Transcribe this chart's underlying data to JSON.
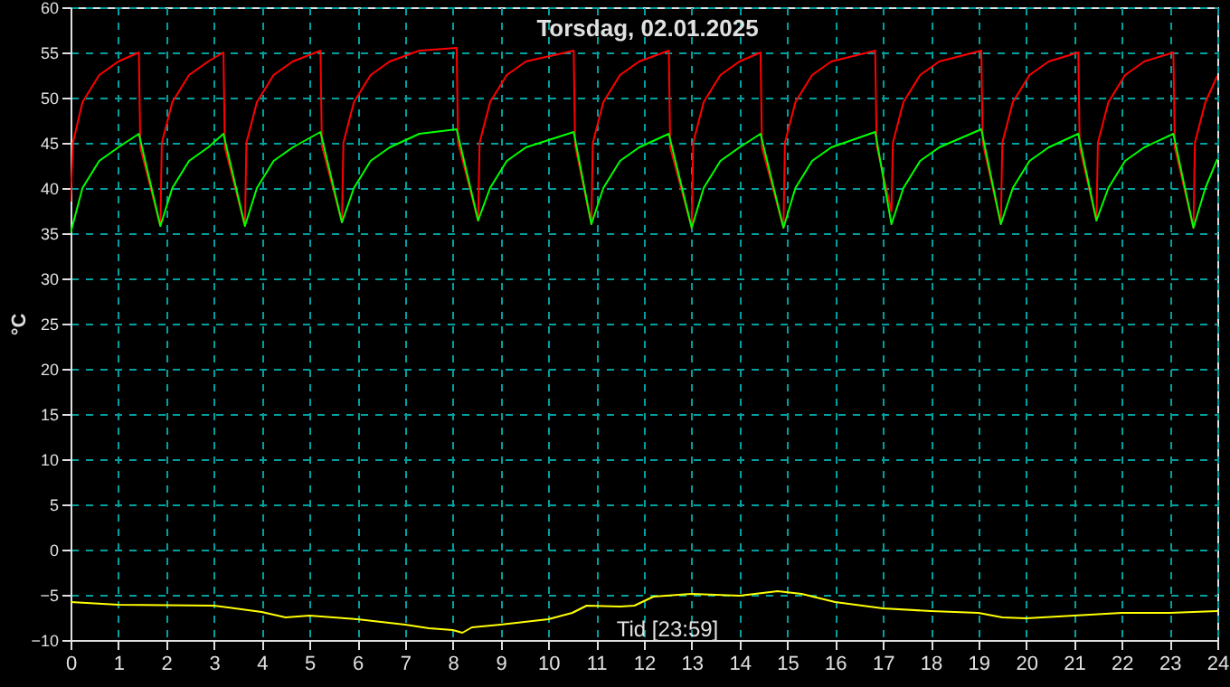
{
  "chart_data": {
    "type": "line",
    "title": "Torsdag, 02.01.2025",
    "xlabel": "Tid [23:59]",
    "ylabel": "°C",
    "xlim": [
      0,
      24
    ],
    "xticks": [
      0,
      1,
      2,
      3,
      4,
      5,
      6,
      7,
      8,
      9,
      10,
      11,
      12,
      13,
      14,
      15,
      16,
      17,
      18,
      19,
      20,
      21,
      22,
      23,
      24
    ],
    "ylim": [
      -10,
      60
    ],
    "yticks": [
      -10,
      -5,
      0,
      5,
      10,
      15,
      20,
      25,
      30,
      35,
      40,
      45,
      50,
      55,
      60
    ],
    "grid": true,
    "line_style": "solid",
    "marker": "none",
    "series": [
      {
        "color": "#ff0000",
        "x": [
          0,
          0.05,
          0.25,
          0.6,
          1.0,
          1.43,
          1.46,
          1.88,
          1.91,
          2.13,
          2.48,
          2.88,
          3.2,
          3.23,
          3.65,
          3.68,
          3.9,
          4.25,
          4.65,
          5.23,
          5.26,
          5.68,
          5.71,
          5.93,
          6.28,
          6.68,
          7.3,
          8.08,
          8.11,
          8.53,
          8.56,
          8.78,
          9.13,
          9.53,
          10.53,
          10.56,
          10.9,
          10.93,
          11.15,
          11.5,
          11.9,
          12.52,
          12.55,
          13.0,
          13.03,
          13.25,
          13.6,
          14.0,
          14.44,
          14.47,
          14.92,
          14.95,
          15.17,
          15.52,
          15.92,
          16.84,
          16.87,
          17.18,
          17.21,
          17.43,
          17.78,
          18.18,
          19.06,
          19.09,
          19.47,
          19.5,
          19.72,
          20.07,
          20.47,
          21.09,
          21.12,
          21.47,
          21.5,
          21.72,
          22.07,
          22.47,
          23.08,
          23.11,
          23.5,
          23.53,
          23.75,
          24
        ],
        "values": [
          38.5,
          45,
          49.5,
          52.5,
          54,
          55,
          44.5,
          35.8,
          45,
          49.5,
          52.5,
          54,
          55,
          44.5,
          35.8,
          45,
          49.5,
          52.5,
          54,
          55.2,
          44.7,
          36.2,
          45,
          49.5,
          52.5,
          54,
          55.2,
          55.5,
          45,
          36.4,
          45,
          49.5,
          52.5,
          54,
          55.2,
          44.7,
          36,
          45,
          49.5,
          52.5,
          54,
          55.2,
          44.5,
          35.6,
          45,
          49.5,
          52.5,
          54,
          55,
          44.5,
          35.6,
          45,
          49.5,
          52.5,
          54,
          55.2,
          44.7,
          37.4,
          45,
          49.5,
          52.5,
          54,
          55.2,
          45,
          36,
          45,
          49.5,
          52.5,
          54,
          55,
          44.5,
          36.4,
          45,
          49.5,
          52.5,
          54,
          55,
          44.5,
          35.6,
          45,
          49.5,
          52.4
        ]
      },
      {
        "color": "#00ff00",
        "x": [
          0,
          0.25,
          0.6,
          1.0,
          1.43,
          1.88,
          2.13,
          2.48,
          2.88,
          3.2,
          3.65,
          3.9,
          4.25,
          4.65,
          5.23,
          5.68,
          5.93,
          6.28,
          6.68,
          7.3,
          8.08,
          8.53,
          8.78,
          9.13,
          9.53,
          10.53,
          10.9,
          11.15,
          11.5,
          11.9,
          12.52,
          13.0,
          13.25,
          13.6,
          14.0,
          14.44,
          14.92,
          15.17,
          15.52,
          15.92,
          16.84,
          17.18,
          17.43,
          17.78,
          18.18,
          19.06,
          19.47,
          19.72,
          20.07,
          20.47,
          21.09,
          21.47,
          21.72,
          22.07,
          22.47,
          23.08,
          23.5,
          23.75,
          24
        ],
        "values": [
          35,
          40,
          43,
          44.5,
          46,
          35.8,
          40,
          43,
          44.5,
          46,
          35.8,
          40,
          43,
          44.5,
          46.2,
          36.2,
          40,
          43,
          44.5,
          46,
          46.5,
          36.4,
          40,
          43,
          44.5,
          46.2,
          36,
          40,
          43,
          44.5,
          46,
          35.6,
          40,
          43,
          44.5,
          46,
          35.6,
          40,
          43,
          44.5,
          46.2,
          36,
          40,
          43,
          44.5,
          46.5,
          36,
          40,
          43,
          44.5,
          46,
          36.4,
          40,
          43,
          44.5,
          46,
          35.6,
          40,
          43.2
        ]
      },
      {
        "color": "#ffff00",
        "x": [
          0,
          1,
          3,
          4,
          4.5,
          5,
          6,
          7,
          7.5,
          8,
          8.2,
          8.4,
          9,
          10,
          10.5,
          10.8,
          11.5,
          11.8,
          12.2,
          13,
          14,
          14.8,
          15.3,
          16,
          17,
          18,
          19,
          19.5,
          20,
          21,
          22,
          23,
          24
        ],
        "values": [
          -5.8,
          -6.1,
          -6.2,
          -6.9,
          -7.5,
          -7.3,
          -7.7,
          -8.3,
          -8.7,
          -8.9,
          -9.2,
          -8.6,
          -8.3,
          -7.7,
          -7,
          -6.2,
          -6.3,
          -6.2,
          -5.2,
          -4.9,
          -5.1,
          -4.6,
          -4.9,
          -5.8,
          -6.5,
          -6.8,
          -7,
          -7.5,
          -7.6,
          -7.3,
          -7,
          -7,
          -6.8
        ]
      }
    ]
  }
}
